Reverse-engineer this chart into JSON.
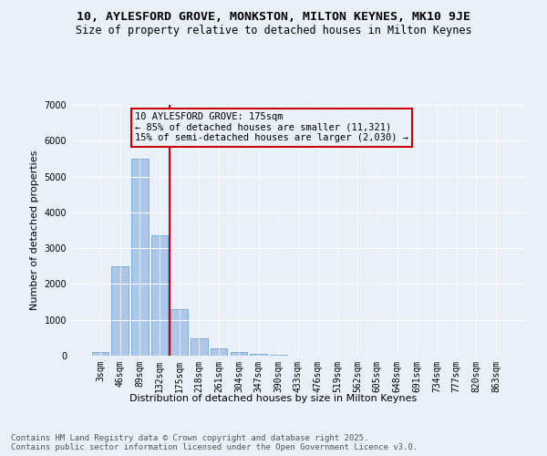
{
  "title_line1": "10, AYLESFORD GROVE, MONKSTON, MILTON KEYNES, MK10 9JE",
  "title_line2": "Size of property relative to detached houses in Milton Keynes",
  "xlabel": "Distribution of detached houses by size in Milton Keynes",
  "ylabel": "Number of detached properties",
  "categories": [
    "3sqm",
    "46sqm",
    "89sqm",
    "132sqm",
    "175sqm",
    "218sqm",
    "261sqm",
    "304sqm",
    "347sqm",
    "390sqm",
    "433sqm",
    "476sqm",
    "519sqm",
    "562sqm",
    "605sqm",
    "648sqm",
    "691sqm",
    "734sqm",
    "777sqm",
    "820sqm",
    "863sqm"
  ],
  "values": [
    100,
    2500,
    5500,
    3350,
    1300,
    480,
    215,
    90,
    50,
    30,
    0,
    0,
    0,
    0,
    0,
    0,
    0,
    0,
    0,
    0,
    0
  ],
  "bar_color": "#aec6e8",
  "bar_edge_color": "#5a9fd4",
  "vline_index": 4,
  "vline_color": "#cc0000",
  "annotation_box_text": "10 AYLESFORD GROVE: 175sqm\n← 85% of detached houses are smaller (11,321)\n15% of semi-detached houses are larger (2,030) →",
  "annotation_box_color": "#cc0000",
  "bg_color": "#eaf0f8",
  "footer_text": "Contains HM Land Registry data © Crown copyright and database right 2025.\nContains public sector information licensed under the Open Government Licence v3.0.",
  "ylim": [
    0,
    7000
  ],
  "yticks": [
    0,
    1000,
    2000,
    3000,
    4000,
    5000,
    6000,
    7000
  ],
  "title_fontsize": 9.5,
  "subtitle_fontsize": 8.5,
  "axis_label_fontsize": 8,
  "tick_fontsize": 7,
  "footer_fontsize": 6.5,
  "annot_fontsize": 7.5
}
